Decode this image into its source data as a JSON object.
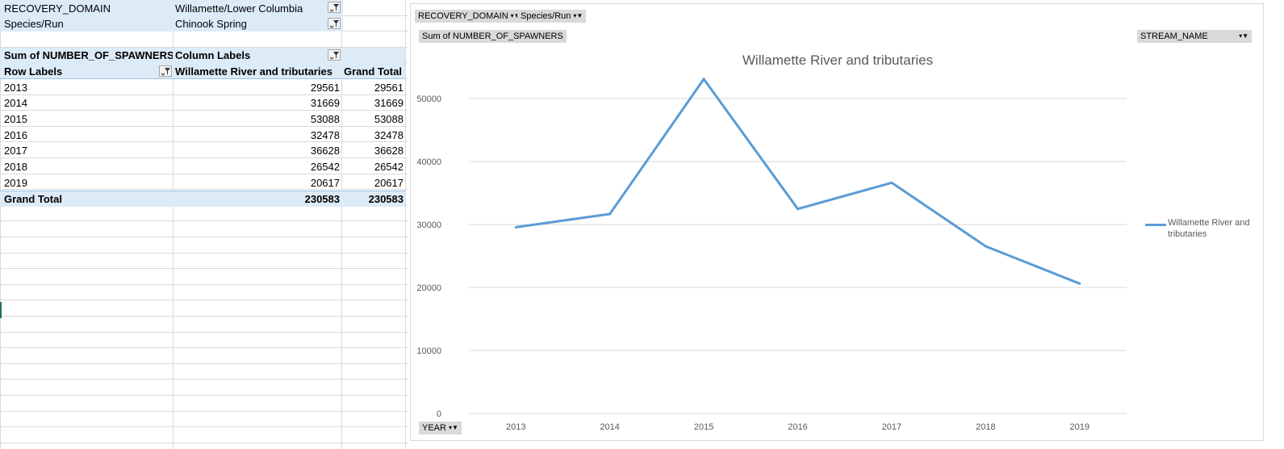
{
  "filters": [
    {
      "field": "RECOVERY_DOMAIN",
      "value": "Willamette/Lower Columbia"
    },
    {
      "field": "Species/Run",
      "value": "Chinook  Spring"
    }
  ],
  "pivot": {
    "value_header": "Sum of NUMBER_OF_SPAWNERS",
    "column_labels": "Column Labels",
    "row_labels": "Row Labels",
    "col_stream": "Willamette River and tributaries",
    "col_grand_total": "Grand Total",
    "rows": [
      {
        "year": "2013",
        "value": "29561",
        "total": "29561"
      },
      {
        "year": "2014",
        "value": "31669",
        "total": "31669"
      },
      {
        "year": "2015",
        "value": "53088",
        "total": "53088"
      },
      {
        "year": "2016",
        "value": "32478",
        "total": "32478"
      },
      {
        "year": "2017",
        "value": "36628",
        "total": "36628"
      },
      {
        "year": "2018",
        "value": "26542",
        "total": "26542"
      },
      {
        "year": "2019",
        "value": "20617",
        "total": "20617"
      }
    ],
    "grand_total_label": "Grand Total",
    "grand_total_value": "230583",
    "grand_total_total": "230583"
  },
  "chart_buttons": {
    "recovery_domain": "RECOVERY_DOMAIN",
    "species_run": "Species/Run",
    "values": "Sum of NUMBER_OF_SPAWNERS",
    "legend_field": "STREAM_NAME",
    "axis_field": "YEAR"
  },
  "colors": {
    "series": "#5b9bd5",
    "header_band": "#ddebf7"
  },
  "chart_data": {
    "type": "line",
    "title": "Willamette River and tributaries",
    "x": [
      "2013",
      "2014",
      "2015",
      "2016",
      "2017",
      "2018",
      "2019"
    ],
    "series": [
      {
        "name": "Willamette River and tributaries",
        "values": [
          29561,
          31669,
          53088,
          32478,
          36628,
          26542,
          20617
        ]
      }
    ],
    "ylim": [
      0,
      50000
    ],
    "yticks": [
      0,
      10000,
      20000,
      30000,
      40000,
      50000
    ],
    "grid": true,
    "legend": "right"
  }
}
